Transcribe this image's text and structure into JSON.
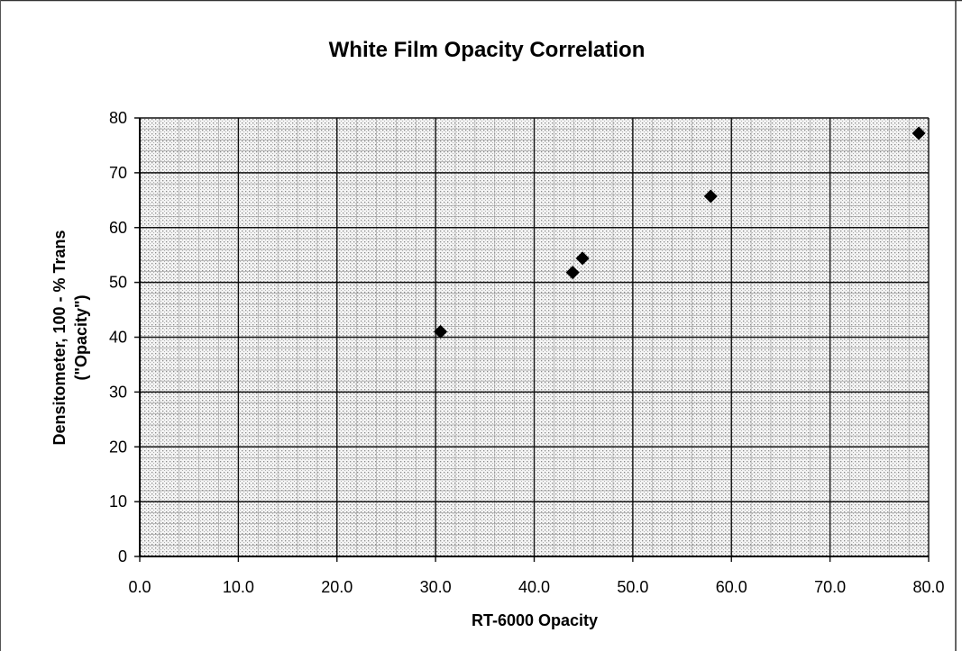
{
  "chart_data": {
    "type": "scatter",
    "title": "White Film Opacity Correlation",
    "xlabel": "RT-6000 Opacity",
    "ylabel_lines": [
      "Densitometer, 100 - % Trans",
      "(\"Opacity\")"
    ],
    "xlim": [
      0,
      80
    ],
    "ylim": [
      0,
      80
    ],
    "x_ticks": [
      "0.0",
      "10.0",
      "20.0",
      "30.0",
      "40.0",
      "50.0",
      "60.0",
      "70.0",
      "80.0"
    ],
    "y_ticks": [
      "0",
      "10",
      "20",
      "30",
      "40",
      "50",
      "60",
      "70",
      "80"
    ],
    "grid": true,
    "legend": "none",
    "marker": "diamond",
    "points": [
      {
        "x": 30.5,
        "y": 41.0
      },
      {
        "x": 43.9,
        "y": 51.8
      },
      {
        "x": 44.9,
        "y": 54.4
      },
      {
        "x": 57.9,
        "y": 65.7
      },
      {
        "x": 79.0,
        "y": 77.2
      }
    ]
  },
  "colors": {
    "plot_background": "#ededed",
    "grid_major": "#111111",
    "marker": "#000000",
    "text": "#000000"
  }
}
